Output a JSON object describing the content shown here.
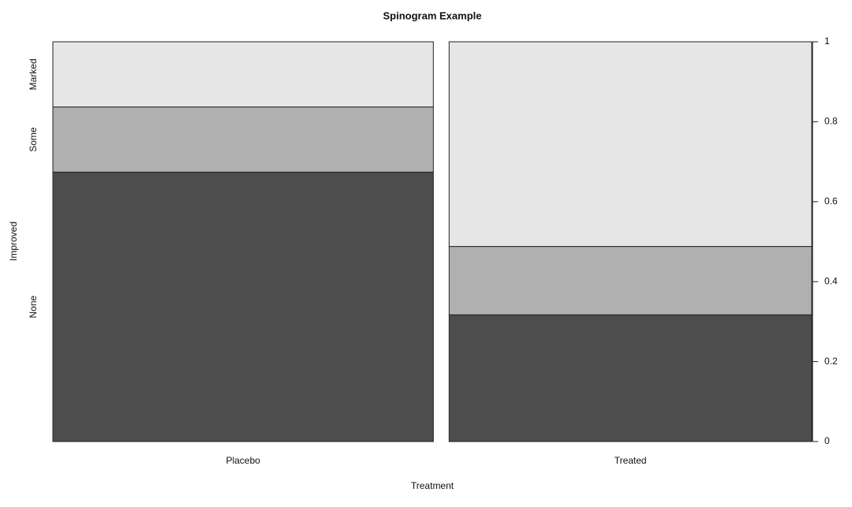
{
  "chart_data": {
    "type": "spinogram",
    "title": "Spinogram Example",
    "xlabel": "Treatment",
    "ylabel": "Improved",
    "categories": [
      "Placebo",
      "Treated"
    ],
    "widths": [
      0.512,
      0.488
    ],
    "series": [
      {
        "name": "None",
        "color": "#4d4d4d",
        "values": [
          0.674,
          0.317
        ]
      },
      {
        "name": "Some",
        "color": "#b0b0b0",
        "values": [
          0.163,
          0.171
        ]
      },
      {
        "name": "Marked",
        "color": "#e6e6e6",
        "values": [
          0.163,
          0.512
        ]
      }
    ],
    "ylim": [
      0,
      1
    ],
    "yticks": [
      0,
      0.2,
      0.4,
      0.6,
      0.8,
      1
    ]
  }
}
